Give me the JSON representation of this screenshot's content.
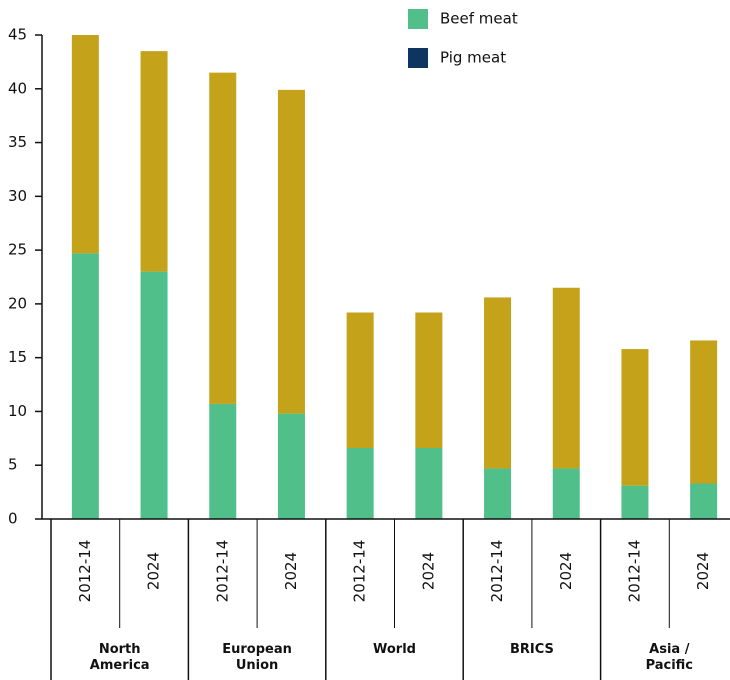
{
  "chart_data": {
    "type": "stacked_bar",
    "categories": [
      "2012-14",
      "2024",
      "2012-14",
      "2024",
      "2012-14",
      "2024",
      "2012-14",
      "2024",
      "2012-14",
      "2024"
    ],
    "groups": [
      "North America",
      "European Union",
      "World",
      "BRICS",
      "Asia / Pacific"
    ],
    "series": [
      {
        "name": "Beef meat",
        "color": "#50bf8a",
        "legend_color": "#50bf8a",
        "values": [
          24.7,
          23.0,
          10.7,
          9.8,
          6.6,
          6.6,
          4.7,
          4.7,
          3.1,
          3.3
        ]
      },
      {
        "name": "Pig meat",
        "color": "#c4a21a",
        "legend_color": "#0e3560",
        "values": [
          20.3,
          20.5,
          30.8,
          30.1,
          12.6,
          12.6,
          15.9,
          16.8,
          12.7,
          13.3
        ]
      }
    ],
    "ylim": [
      0,
      45
    ],
    "yticks": [
      0,
      5,
      10,
      15,
      20,
      25,
      30,
      35,
      40,
      45
    ],
    "grid": false
  }
}
